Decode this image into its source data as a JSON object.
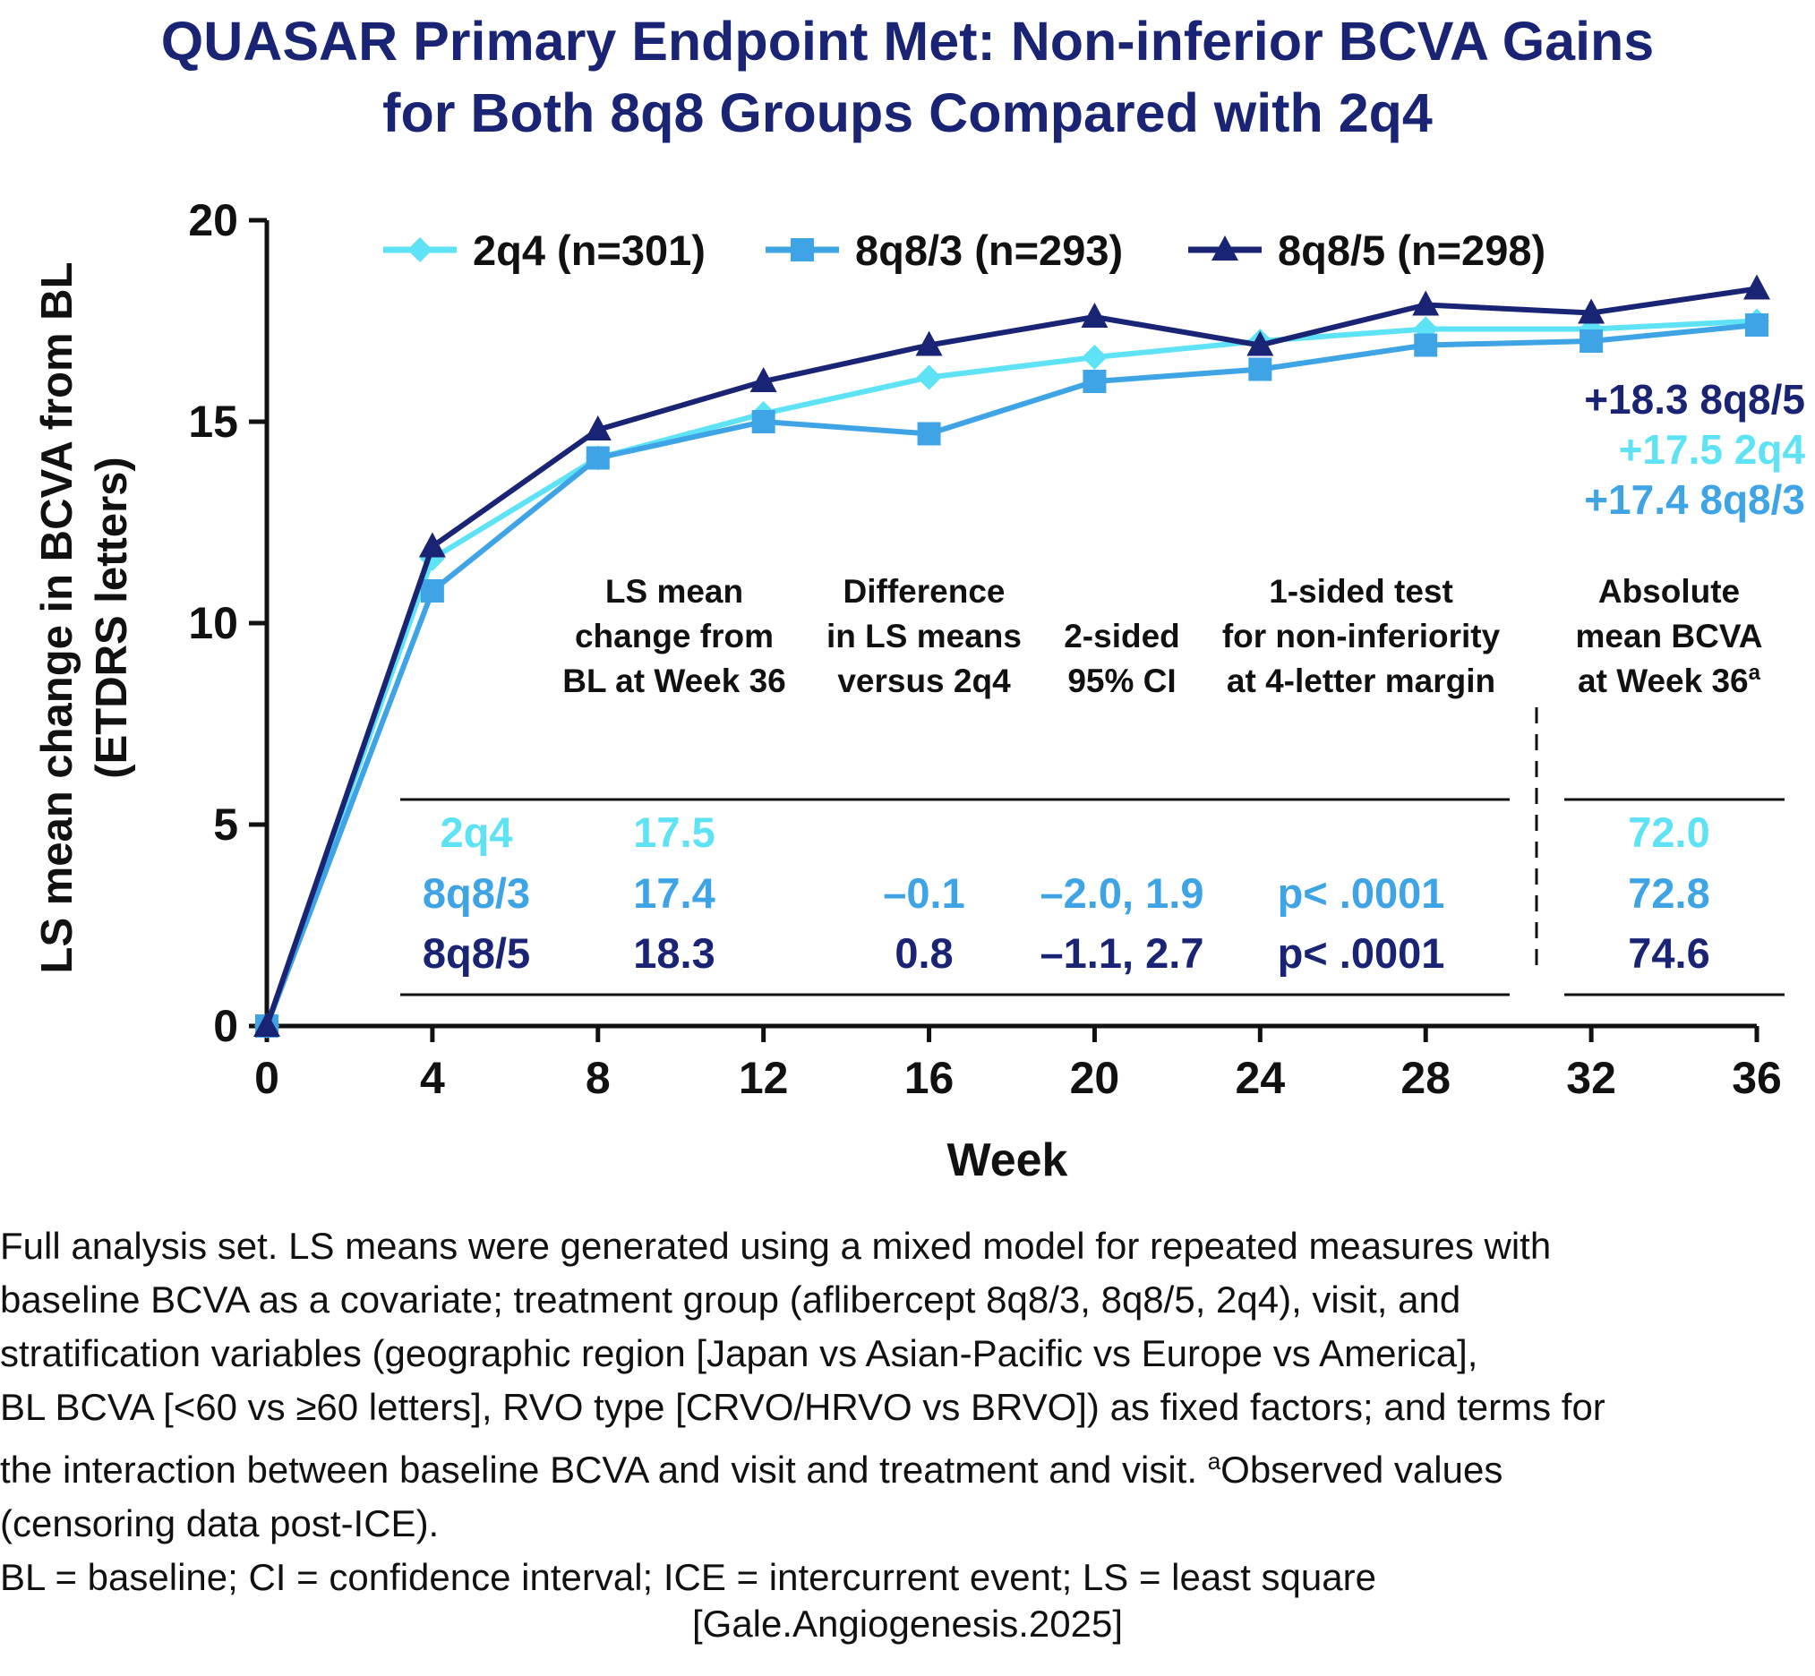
{
  "title": {
    "line1": "QUASAR Primary Endpoint Met: Non-inferior BCVA Gains",
    "line2": "for Both 8q8 Groups Compared with 2q4"
  },
  "colors": {
    "2q4": "#5ee2f5",
    "8q8/3": "#3ea4e6",
    "8q8/5": "#1a2474",
    "axis": "#111111",
    "title": "#1a2474"
  },
  "chart_data": {
    "type": "line",
    "xlabel": "Week",
    "ylabel_line1": "LS mean change in BCVA from BL",
    "ylabel_line2": "(ETDRS letters)",
    "x": [
      0,
      4,
      8,
      12,
      16,
      20,
      24,
      28,
      32,
      36
    ],
    "xlim": [
      0,
      36
    ],
    "ylim": [
      0,
      20
    ],
    "xticks": [
      "0",
      "4",
      "8",
      "12",
      "16",
      "20",
      "24",
      "28",
      "32",
      "36"
    ],
    "yticks": [
      "0",
      "5",
      "10",
      "15",
      "20"
    ],
    "legend_position": "top",
    "series": [
      {
        "key": "2q4",
        "name": "2q4 (n=301)",
        "marker": "diamond",
        "values": [
          0,
          11.6,
          14.1,
          15.2,
          16.1,
          16.6,
          17.0,
          17.3,
          17.3,
          17.5
        ]
      },
      {
        "key": "8q8/3",
        "name": "8q8/3 (n=293)",
        "marker": "square",
        "values": [
          0,
          10.8,
          14.1,
          15.0,
          14.7,
          16.0,
          16.3,
          16.9,
          17.0,
          17.4
        ]
      },
      {
        "key": "8q8/5",
        "name": "8q8/5 (n=298)",
        "marker": "triangle",
        "values": [
          0,
          11.9,
          14.8,
          16.0,
          16.9,
          17.6,
          16.9,
          17.9,
          17.7,
          18.3
        ]
      }
    ],
    "end_labels": [
      {
        "key": "8q8/5",
        "text": "+18.3 8q8/5"
      },
      {
        "key": "2q4",
        "text": "+17.5 2q4"
      },
      {
        "key": "8q8/3",
        "text": "+17.4 8q8/3"
      }
    ],
    "table": {
      "headers": [
        [
          "LS mean",
          "change from",
          "BL at Week 36"
        ],
        [
          "Difference",
          "in LS means",
          "versus 2q4"
        ],
        [
          "2-sided",
          "95% CI"
        ],
        [
          "1-sided test",
          "for non-inferiority",
          "at 4-letter margin"
        ],
        [
          "Absolute",
          "mean BCVA",
          "at Week 36"
        ]
      ],
      "header_superscript": "a",
      "rows": [
        {
          "key": "2q4",
          "cells": [
            "2q4",
            "17.5",
            "",
            "",
            "",
            "72.0"
          ]
        },
        {
          "key": "8q8/3",
          "cells": [
            "8q8/3",
            "17.4",
            "–0.1",
            "–2.0, 1.9",
            "p< .0001",
            "72.8"
          ]
        },
        {
          "key": "8q8/5",
          "cells": [
            "8q8/5",
            "18.3",
            "0.8",
            "–1.1, 2.7",
            "p< .0001",
            "74.6"
          ]
        }
      ]
    }
  },
  "footnote": {
    "lines": [
      "Full analysis set. LS means were generated using a mixed model for repeated measures with",
      "baseline BCVA as a covariate; treatment group (aflibercept 8q8/3, 8q8/5, 2q4), visit, and",
      "stratification variables (geographic region [Japan vs Asian-Pacific vs Europe vs America],",
      "BL BCVA [<60 vs ≥60 letters], RVO type [CRVO/HRVO vs BRVO]) as fixed factors; and terms for",
      "the interaction between baseline BCVA and visit and treatment and visit."
    ],
    "line5_sup": "a",
    "line5_tail": "Observed values",
    "line6": "(censoring data post-ICE).",
    "abbrev": "BL = baseline; CI = confidence interval; ICE = intercurrent event; LS = least square"
  },
  "citation": "[Gale.Angiogenesis.2025]"
}
